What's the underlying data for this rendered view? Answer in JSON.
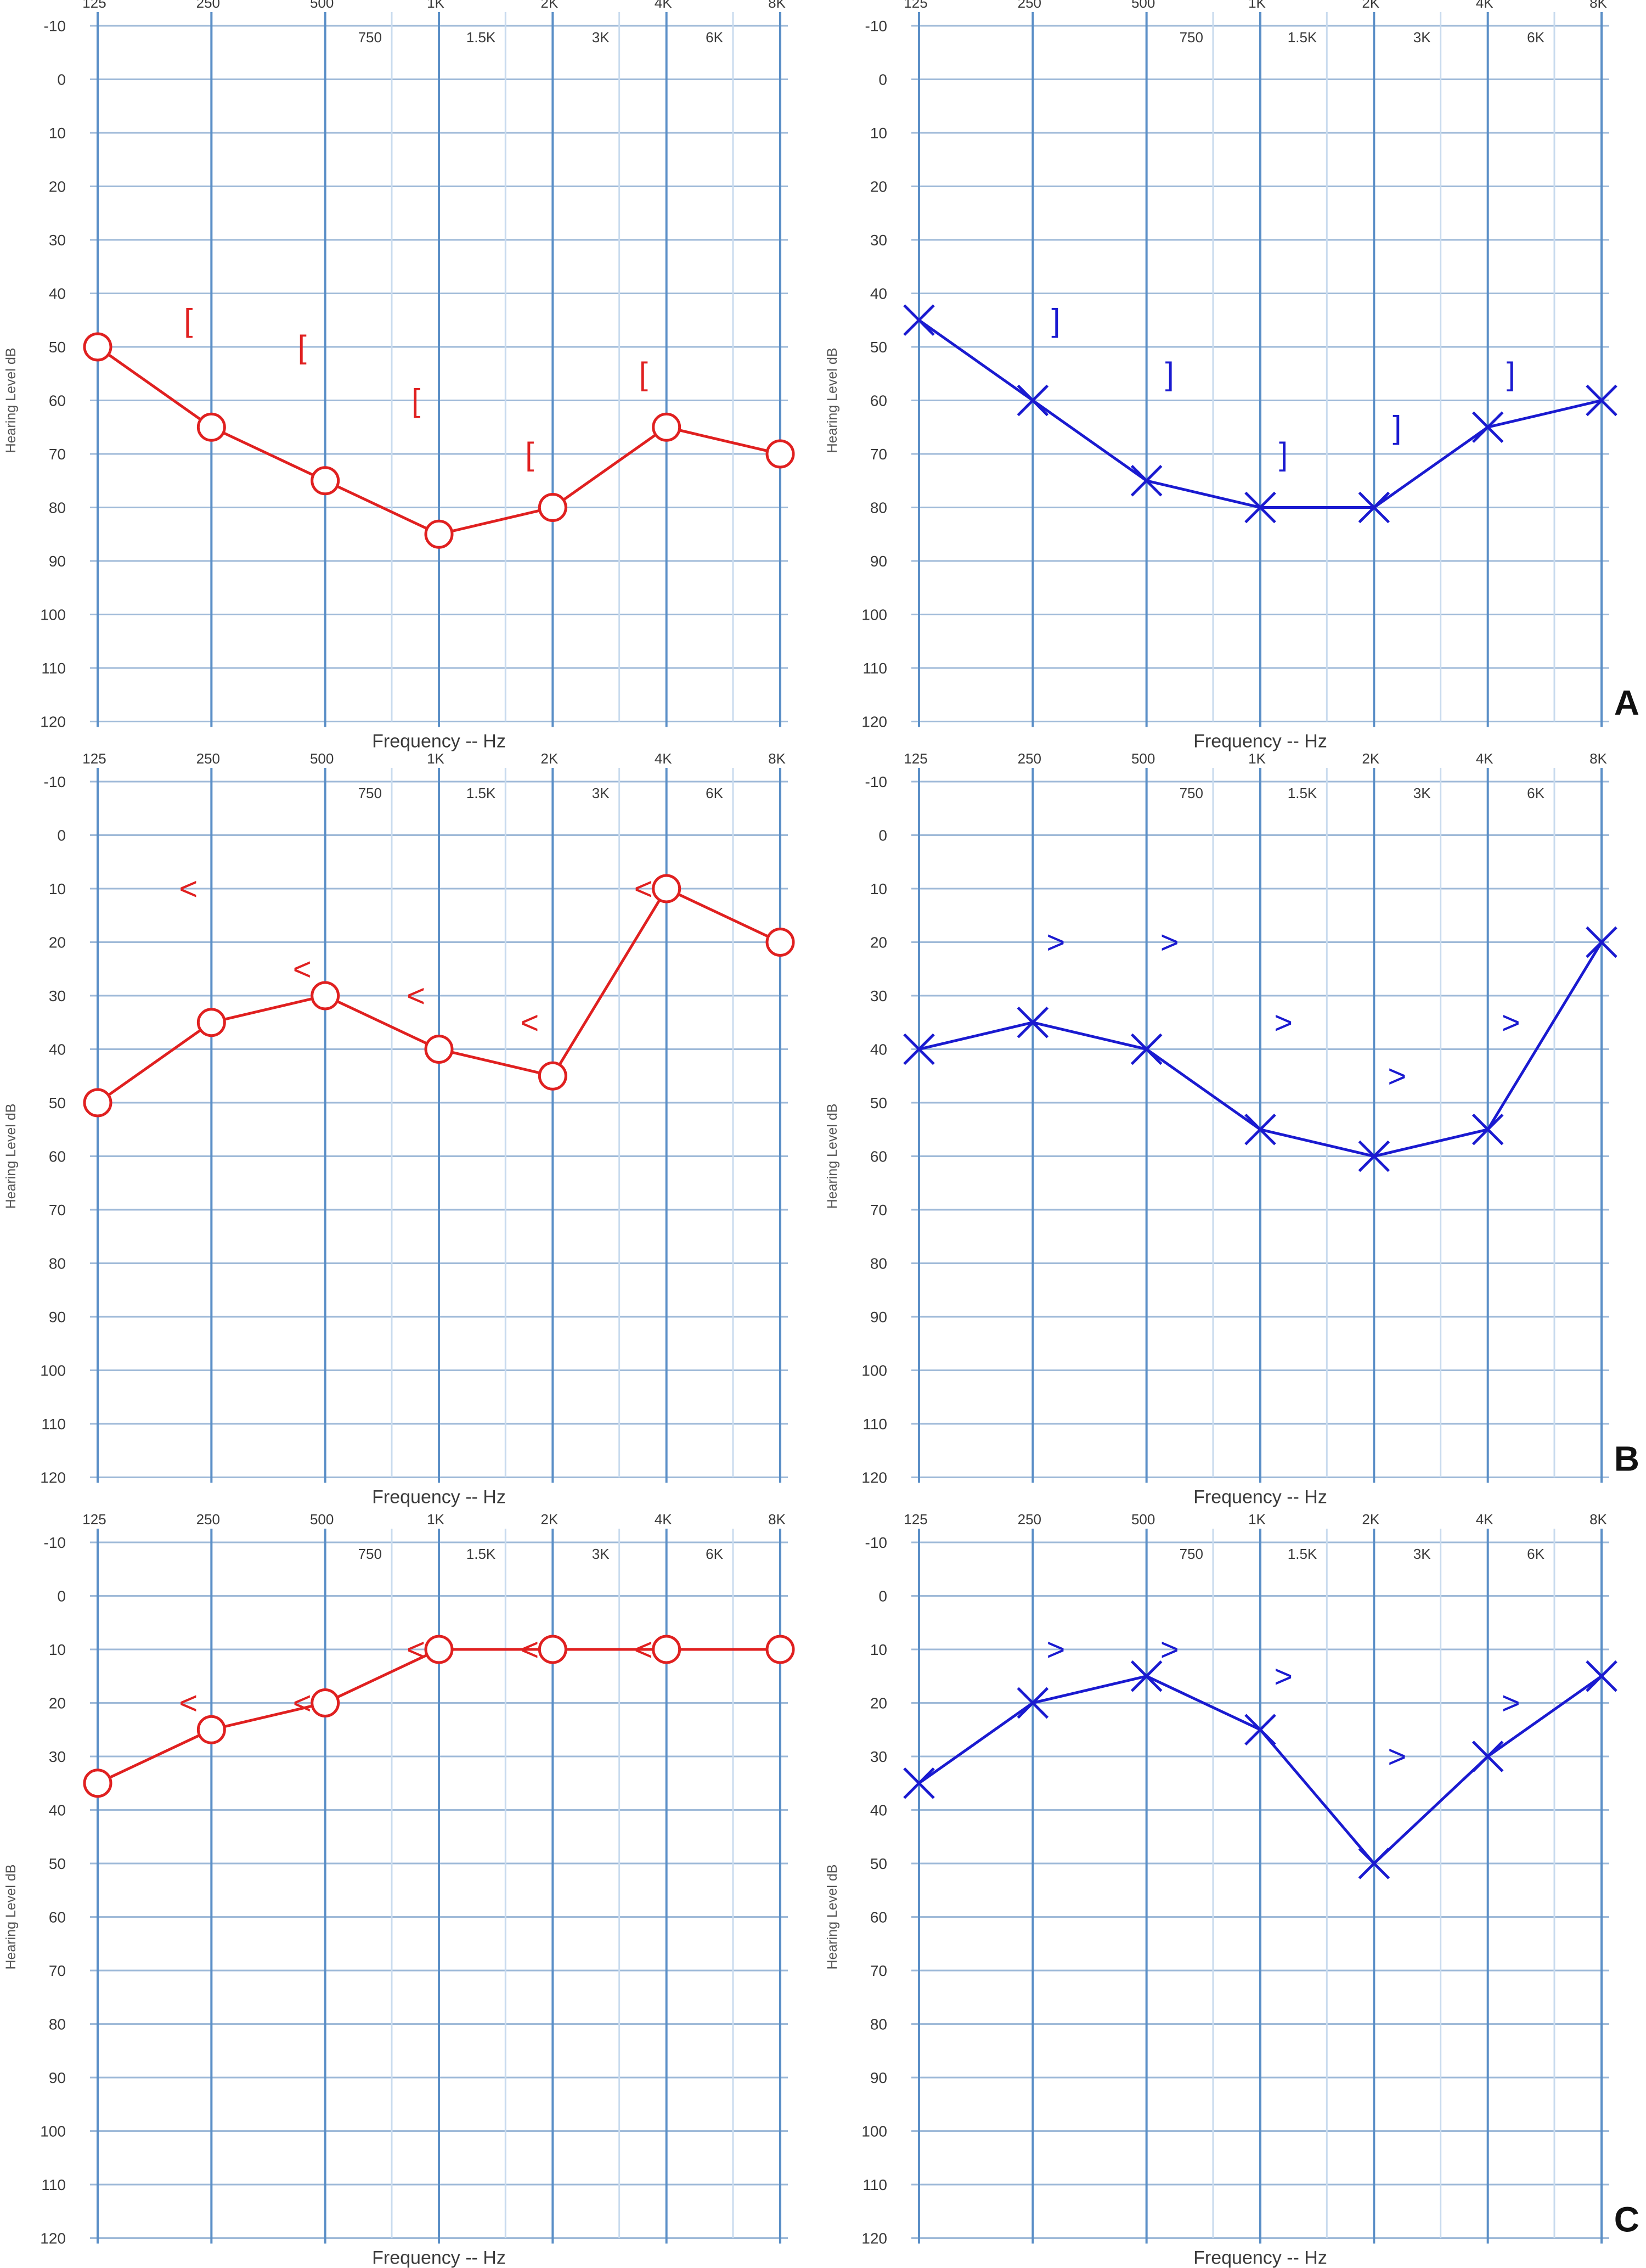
{
  "figure": {
    "colors": {
      "right_ear": "#e02020",
      "left_ear": "#1a1ad0",
      "grid_major": "#5b8fc7",
      "grid_minor": "#c9dbee",
      "grid_horizontal": "#9fbad8"
    },
    "icons": {
      "air_right": "circle-icon",
      "air_left": "x-mark-icon",
      "bone_masked_right": "left-square-bracket-icon",
      "bone_masked_left": "right-square-bracket-icon",
      "bone_unmasked_right": "left-angle-icon",
      "bone_unmasked_left": "right-angle-icon"
    }
  },
  "chart_data": [
    {
      "type": "line",
      "panel": "A",
      "ear": "right",
      "letter": "",
      "ylabel": "Hearing Level dB",
      "xlabel": "Frequency -- Hz",
      "ylim": [
        -10,
        120
      ],
      "y_ticks": [
        "-10",
        "0",
        "10",
        "20",
        "30",
        "40",
        "50",
        "60",
        "70",
        "80",
        "90",
        "100",
        "110",
        "120"
      ],
      "octave_ticks": [
        "125",
        "250",
        "500",
        "1K",
        "2K",
        "4K",
        "8K"
      ],
      "interoctave_ticks": [
        "750",
        "1.5K",
        "3K",
        "6K"
      ],
      "grid": true,
      "air": {
        "symbol": "circle",
        "x": [
          "125",
          "250",
          "500",
          "1K",
          "2K",
          "4K",
          "8K"
        ],
        "y": [
          50,
          65,
          75,
          85,
          80,
          65,
          70
        ]
      },
      "bone": {
        "symbol": "[",
        "x": [
          "250",
          "500",
          "1K",
          "2K",
          "4K"
        ],
        "y": [
          45,
          50,
          60,
          70,
          55
        ]
      }
    },
    {
      "type": "line",
      "panel": "A",
      "ear": "left",
      "letter": "A",
      "ylabel": "Hearing Level dB",
      "xlabel": "Frequency -- Hz",
      "ylim": [
        -10,
        120
      ],
      "y_ticks": [
        "-10",
        "0",
        "10",
        "20",
        "30",
        "40",
        "50",
        "60",
        "70",
        "80",
        "90",
        "100",
        "110",
        "120"
      ],
      "octave_ticks": [
        "125",
        "250",
        "500",
        "1K",
        "2K",
        "4K",
        "8K"
      ],
      "interoctave_ticks": [
        "750",
        "1.5K",
        "3K",
        "6K"
      ],
      "grid": true,
      "air": {
        "symbol": "x",
        "x": [
          "125",
          "250",
          "500",
          "1K",
          "2K",
          "4K",
          "8K"
        ],
        "y": [
          45,
          60,
          75,
          80,
          80,
          65,
          60
        ]
      },
      "bone": {
        "symbol": "]",
        "x": [
          "250",
          "500",
          "1K",
          "2K",
          "4K"
        ],
        "y": [
          45,
          55,
          70,
          65,
          55
        ]
      }
    },
    {
      "type": "line",
      "panel": "B",
      "ear": "right",
      "letter": "",
      "ylabel": "Hearing Level dB",
      "xlabel": "Frequency -- Hz",
      "ylim": [
        -10,
        120
      ],
      "y_ticks": [
        "-10",
        "0",
        "10",
        "20",
        "30",
        "40",
        "50",
        "60",
        "70",
        "80",
        "90",
        "100",
        "110",
        "120"
      ],
      "octave_ticks": [
        "125",
        "250",
        "500",
        "1K",
        "2K",
        "4K",
        "8K"
      ],
      "interoctave_ticks": [
        "750",
        "1.5K",
        "3K",
        "6K"
      ],
      "grid": true,
      "air": {
        "symbol": "circle",
        "x": [
          "125",
          "250",
          "500",
          "1K",
          "2K",
          "4K",
          "8K"
        ],
        "y": [
          50,
          35,
          30,
          40,
          45,
          10,
          20
        ]
      },
      "bone": {
        "symbol": "<",
        "x": [
          "250",
          "500",
          "1K",
          "2K",
          "4K"
        ],
        "y": [
          10,
          25,
          30,
          35,
          10
        ]
      }
    },
    {
      "type": "line",
      "panel": "B",
      "ear": "left",
      "letter": "B",
      "ylabel": "Hearing Level dB",
      "xlabel": "Frequency -- Hz",
      "ylim": [
        -10,
        120
      ],
      "y_ticks": [
        "-10",
        "0",
        "10",
        "20",
        "30",
        "40",
        "50",
        "60",
        "70",
        "80",
        "90",
        "100",
        "110",
        "120"
      ],
      "octave_ticks": [
        "125",
        "250",
        "500",
        "1K",
        "2K",
        "4K",
        "8K"
      ],
      "interoctave_ticks": [
        "750",
        "1.5K",
        "3K",
        "6K"
      ],
      "grid": true,
      "air": {
        "symbol": "x",
        "x": [
          "125",
          "250",
          "500",
          "1K",
          "2K",
          "4K",
          "8K"
        ],
        "y": [
          40,
          35,
          40,
          55,
          60,
          55,
          20
        ]
      },
      "bone": {
        "symbol": ">",
        "x": [
          "250",
          "500",
          "1K",
          "2K",
          "4K"
        ],
        "y": [
          20,
          20,
          35,
          45,
          35
        ]
      }
    },
    {
      "type": "line",
      "panel": "C",
      "ear": "right",
      "letter": "",
      "ylabel": "Hearing Level dB",
      "xlabel": "Frequency -- Hz",
      "ylim": [
        -10,
        120
      ],
      "y_ticks": [
        "-10",
        "0",
        "10",
        "20",
        "30",
        "40",
        "50",
        "60",
        "70",
        "80",
        "90",
        "100",
        "110",
        "120"
      ],
      "octave_ticks": [
        "125",
        "250",
        "500",
        "1K",
        "2K",
        "4K",
        "8K"
      ],
      "interoctave_ticks": [
        "750",
        "1.5K",
        "3K",
        "6K"
      ],
      "grid": true,
      "air": {
        "symbol": "circle",
        "x": [
          "125",
          "250",
          "500",
          "1K",
          "2K",
          "4K",
          "8K"
        ],
        "y": [
          35,
          25,
          20,
          10,
          10,
          10,
          10
        ]
      },
      "bone": {
        "symbol": "<",
        "x": [
          "250",
          "500",
          "1K",
          "2K",
          "4K"
        ],
        "y": [
          20,
          20,
          10,
          10,
          10
        ]
      }
    },
    {
      "type": "line",
      "panel": "C",
      "ear": "left",
      "letter": "C",
      "ylabel": "Hearing Level dB",
      "xlabel": "Frequency -- Hz",
      "ylim": [
        -10,
        120
      ],
      "y_ticks": [
        "-10",
        "0",
        "10",
        "20",
        "30",
        "40",
        "50",
        "60",
        "70",
        "80",
        "90",
        "100",
        "110",
        "120"
      ],
      "octave_ticks": [
        "125",
        "250",
        "500",
        "1K",
        "2K",
        "4K",
        "8K"
      ],
      "interoctave_ticks": [
        "750",
        "1.5K",
        "3K",
        "6K"
      ],
      "grid": true,
      "air": {
        "symbol": "x",
        "x": [
          "125",
          "250",
          "500",
          "1K",
          "2K",
          "4K",
          "8K"
        ],
        "y": [
          35,
          20,
          15,
          25,
          50,
          30,
          15
        ]
      },
      "bone": {
        "symbol": ">",
        "x": [
          "250",
          "500",
          "1K",
          "2K",
          "4K"
        ],
        "y": [
          10,
          10,
          15,
          30,
          20
        ]
      }
    }
  ]
}
